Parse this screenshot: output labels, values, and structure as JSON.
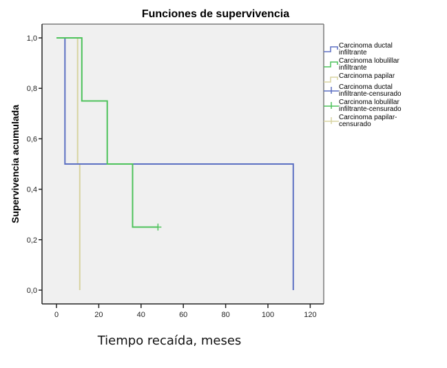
{
  "chart_data": {
    "type": "line",
    "subtype": "kaplan-meier-step",
    "title": "Funciones de supervivencia",
    "xlabel": "Tiempo recaída, meses",
    "ylabel": "Supervivencia acumulada",
    "xlim": [
      -5,
      125
    ],
    "ylim": [
      -0.05,
      1.05
    ],
    "xticks": [
      0,
      20,
      40,
      60,
      80,
      100,
      120
    ],
    "xtick_labels": [
      "0",
      "20",
      "40",
      "60",
      "80",
      "100",
      "120"
    ],
    "yticks": [
      0.0,
      0.2,
      0.4,
      0.6,
      0.8,
      1.0
    ],
    "ytick_labels": [
      "0,0",
      "0,2",
      "0,4",
      "0,6",
      "0,8",
      "1,0"
    ],
    "grid": false,
    "legend_position": "right",
    "series": [
      {
        "name": "Carcinoma ductal infiltrante",
        "color": "#5b6fc2",
        "steps": [
          [
            0,
            1.0
          ],
          [
            4,
            1.0
          ],
          [
            4,
            0.5
          ],
          [
            112,
            0.5
          ],
          [
            112,
            0.0
          ]
        ],
        "censored": []
      },
      {
        "name": "Carcinoma lobulillar infiltrante",
        "color": "#4cc25a",
        "steps": [
          [
            0,
            1.0
          ],
          [
            12,
            1.0
          ],
          [
            12,
            0.75
          ],
          [
            24,
            0.75
          ],
          [
            24,
            0.5
          ],
          [
            36,
            0.5
          ],
          [
            36,
            0.25
          ],
          [
            48,
            0.25
          ]
        ],
        "censored": [
          [
            48,
            0.25
          ]
        ]
      },
      {
        "name": "Carcinoma papilar",
        "color": "#d8d3a0",
        "steps": [
          [
            0,
            1.0
          ],
          [
            10,
            1.0
          ],
          [
            10,
            0.5
          ],
          [
            11,
            0.5
          ],
          [
            11,
            0.0
          ]
        ],
        "censored": []
      }
    ],
    "legend": [
      {
        "label_lines": [
          "Carcinoma ductal",
          "infiltrante"
        ],
        "color": "#5b6fc2",
        "symbol": "step"
      },
      {
        "label_lines": [
          "Carcinoma lobulillar",
          "infiltrante"
        ],
        "color": "#4cc25a",
        "symbol": "step"
      },
      {
        "label_lines": [
          "Carcinoma papilar"
        ],
        "color": "#d8d3a0",
        "symbol": "step"
      },
      {
        "label_lines": [
          "Carcinoma ductal",
          "infiltrante-censurado"
        ],
        "color": "#5b6fc2",
        "symbol": "cross"
      },
      {
        "label_lines": [
          "Carcinoma lobulillar",
          "infiltrante-censurado"
        ],
        "color": "#4cc25a",
        "symbol": "cross"
      },
      {
        "label_lines": [
          "Carcinoma papilar-",
          "censurado"
        ],
        "color": "#d8d3a0",
        "symbol": "cross"
      }
    ]
  }
}
